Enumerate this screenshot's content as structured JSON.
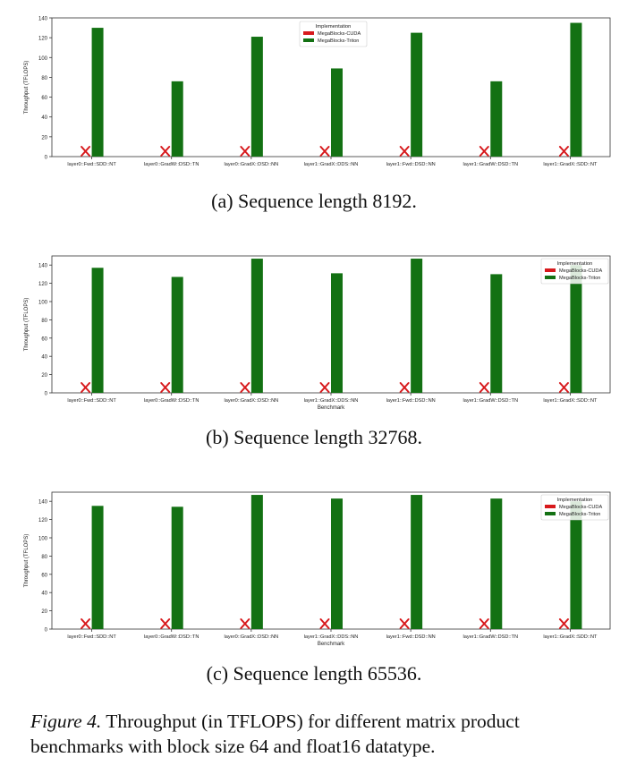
{
  "captions": [
    "(a) Sequence length 8192.",
    "(b) Sequence length 32768.",
    "(c) Sequence length 65536."
  ],
  "figure": {
    "label": "Figure 4.",
    "text": "Throughput (in TFLOPS) for different matrix product benchmarks with block size 64 and float16 datatype."
  },
  "colors": {
    "cuda": "#d7191c",
    "triton": "#137113"
  },
  "chart_data": [
    {
      "type": "bar",
      "title": "",
      "xlabel": "",
      "ylabel": "Throughput (TFLOPS)",
      "ylim": [
        0,
        140
      ],
      "yticks": [
        "0",
        "20",
        "40",
        "60",
        "80",
        "100",
        "120",
        "140"
      ],
      "grid": false,
      "legend": {
        "title": "Implementation",
        "position": "top-center"
      },
      "categories": [
        "layer0::Fwd::SDD::NT",
        "layer0::GradW::DSD::TN",
        "layer0::GradX::DSD::NN",
        "layer1::GradX::DDS::NN",
        "layer1::Fwd::DSD::NN",
        "layer1::GradW::DSD::TN",
        "layer1::GradX::SDD::NT"
      ],
      "series": [
        {
          "name": "MegaBlocks-CUDA",
          "values": [
            null,
            null,
            null,
            null,
            null,
            null,
            null
          ],
          "marker": "X"
        },
        {
          "name": "MegaBlocks-Triton",
          "values": [
            130,
            76,
            121,
            89,
            125,
            76,
            135
          ]
        }
      ]
    },
    {
      "type": "bar",
      "title": "",
      "xlabel": "Benchmark",
      "ylabel": "Throughput (TFLOPS)",
      "ylim": [
        0,
        150
      ],
      "yticks": [
        "0",
        "20",
        "40",
        "60",
        "80",
        "100",
        "120",
        "140"
      ],
      "grid": false,
      "legend": {
        "title": "Implementation",
        "position": "top-right"
      },
      "categories": [
        "layer0::Fwd::SDD::NT",
        "layer0::GradW::DSD::TN",
        "layer0::GradX::DSD::NN",
        "layer1::GradX::DDS::NN",
        "layer1::Fwd::DSD::NN",
        "layer1::GradW::DSD::TN",
        "layer1::GradX::SDD::NT"
      ],
      "series": [
        {
          "name": "MegaBlocks-CUDA",
          "values": [
            null,
            null,
            null,
            null,
            null,
            null,
            null
          ],
          "marker": "X"
        },
        {
          "name": "MegaBlocks-Triton",
          "values": [
            137,
            127,
            147,
            131,
            147,
            130,
            140
          ]
        }
      ]
    },
    {
      "type": "bar",
      "title": "",
      "xlabel": "Benchmark",
      "ylabel": "Throughput (TFLOPS)",
      "ylim": [
        0,
        150
      ],
      "yticks": [
        "0",
        "20",
        "40",
        "60",
        "80",
        "100",
        "120",
        "140"
      ],
      "grid": false,
      "legend": {
        "title": "Implementation",
        "position": "top-right"
      },
      "categories": [
        "layer0::Fwd::SDD::NT",
        "layer0::GradW::DSD::TN",
        "layer0::GradX::DSD::NN",
        "layer1::GradX::DDS::NN",
        "layer1::Fwd::DSD::NN",
        "layer1::GradW::DSD::TN",
        "layer1::GradX::SDD::NT"
      ],
      "series": [
        {
          "name": "MegaBlocks-CUDA",
          "values": [
            null,
            null,
            null,
            null,
            null,
            null,
            null
          ],
          "marker": "X"
        },
        {
          "name": "MegaBlocks-Triton",
          "values": [
            135,
            134,
            147,
            143,
            147,
            143,
            140
          ]
        }
      ]
    }
  ]
}
